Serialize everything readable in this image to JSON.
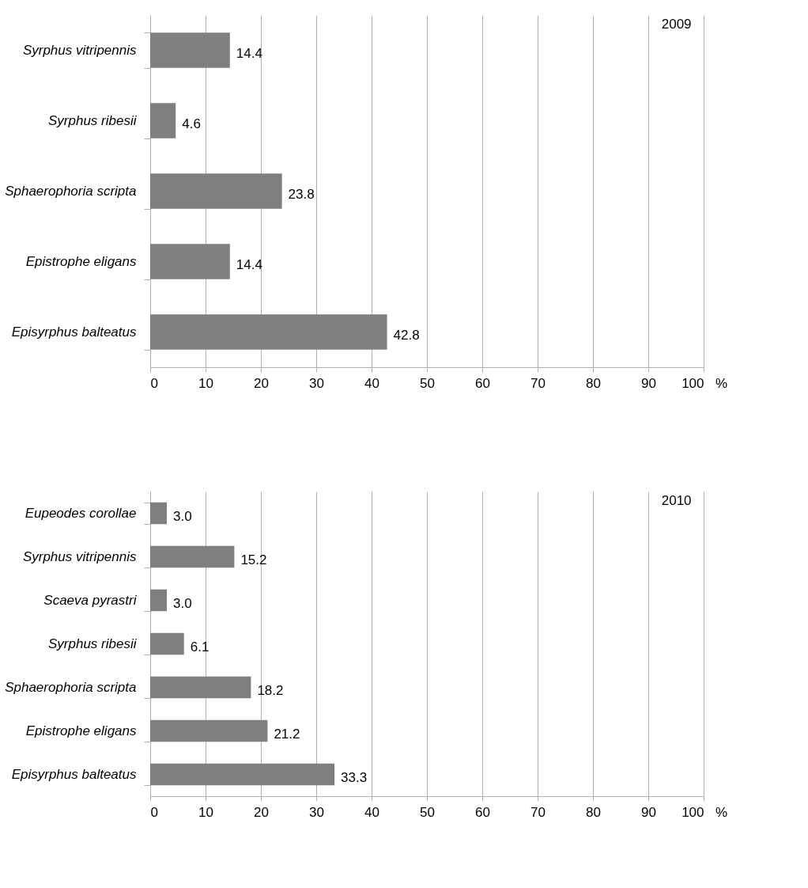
{
  "chart_data": [
    {
      "type": "bar",
      "orientation": "horizontal",
      "title": "2009",
      "xlabel": "%",
      "categories": [
        "Syrphus vitripennis",
        "Syrphus ribesii",
        "Sphaerophoria scripta",
        "Epistrophe eligans",
        "Episyrphus balteatus"
      ],
      "values": [
        14.4,
        4.6,
        23.8,
        14.4,
        42.8
      ],
      "value_labels": [
        "14.4",
        "4.6",
        "23.8",
        "14.4",
        "42.8"
      ],
      "color": "#7f7f7f",
      "xlim": [
        0,
        100
      ],
      "xticks": [
        0,
        10,
        20,
        30,
        40,
        50,
        60,
        70,
        80,
        90,
        100
      ],
      "grid": "x"
    },
    {
      "type": "bar",
      "orientation": "horizontal",
      "title": "2010",
      "xlabel": "%",
      "categories": [
        "Eupeodes corollae",
        "Syrphus vitripennis",
        "Scaeva pyrastri",
        "Syrphus ribesii",
        "Sphaerophoria scripta",
        "Epistrophe eligans",
        "Episyrphus balteatus"
      ],
      "values": [
        3.0,
        15.2,
        3.0,
        6.1,
        18.2,
        21.2,
        33.3
      ],
      "value_labels": [
        "3.0",
        "15.2",
        "3.0",
        "6.1",
        "18.2",
        "21.2",
        "33.3"
      ],
      "color": "#7f7f7f",
      "xlim": [
        0,
        100
      ],
      "xticks": [
        0,
        10,
        20,
        30,
        40,
        50,
        60,
        70,
        80,
        90,
        100
      ],
      "grid": "x"
    }
  ]
}
